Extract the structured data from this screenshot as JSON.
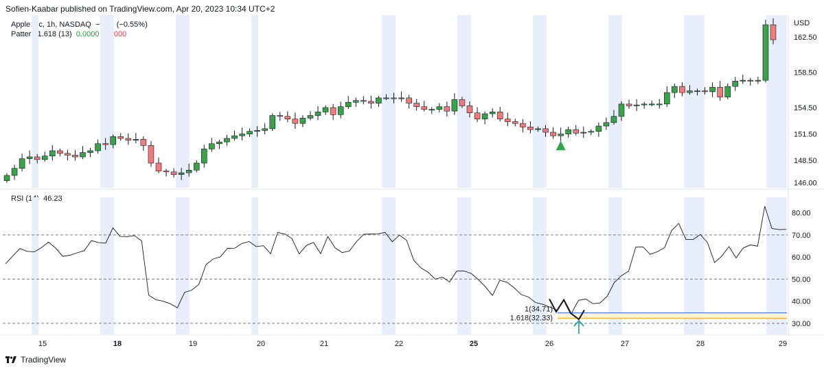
{
  "header": {
    "publisher": "Sofien-Kaabar published on TradingView.com, Apr 20, 2023 10:34 UTC+2"
  },
  "legend": {
    "symbol": "Apple Inc, 1h, NASDAQ",
    "change": "−0.92 (−0.55%)",
    "pattern_label": "Pattern 1.618 (13)",
    "pattern_v1": "0.0000",
    "pattern_v2": "0.0000",
    "rsi_label": "RSI (14)",
    "rsi_value": "46.23"
  },
  "currency": "USD",
  "footer": {
    "brand": "TradingView"
  },
  "colors": {
    "up": "#3aa34a",
    "down": "#ef7b7b",
    "session": "#e8eefc",
    "rsi": "#131722",
    "fib1": "#2962ff",
    "fib1618": "#f7a21b",
    "arrow": "#089981"
  },
  "chart_data": [
    {
      "type": "candlestick",
      "ylim": [
        145.4,
        165
      ],
      "y_ticks": [
        "146.00",
        "148.50",
        "151.50",
        "154.50",
        "158.50",
        "162.50"
      ],
      "x_ticks": [
        "15",
        "18",
        "19",
        "20",
        "21",
        "22",
        "25",
        "26",
        "27",
        "28",
        "29"
      ],
      "close": [
        146.8,
        147.6,
        148.7,
        148.9,
        148.6,
        149.0,
        149.6,
        149.3,
        149.1,
        148.9,
        149.4,
        149.6,
        150.4,
        150.3,
        151.2,
        151.0,
        150.8,
        150.9,
        150.2,
        148.2,
        147.3,
        147.2,
        146.9,
        147.1,
        147.4,
        148.2,
        149.8,
        150.4,
        150.6,
        151.0,
        151.3,
        151.5,
        151.8,
        151.9,
        152.1,
        153.6,
        153.5,
        153.2,
        152.7,
        153.3,
        153.6,
        154.0,
        154.5,
        153.7,
        154.6,
        155.1,
        155.3,
        155.2,
        155.0,
        155.6,
        155.6,
        155.5,
        155.6,
        155.0,
        154.6,
        154.3,
        154.3,
        154.6,
        154.1,
        155.4,
        154.7,
        153.9,
        153.2,
        153.8,
        154.0,
        153.2,
        152.9,
        152.7,
        152.3,
        152.0,
        152.1,
        151.7,
        151.3,
        151.5,
        152.0,
        151.6,
        151.7,
        151.8,
        152.4,
        152.8,
        153.5,
        154.9,
        154.7,
        154.8,
        154.9,
        154.9,
        154.9,
        156.2,
        156.9,
        156.2,
        156.4,
        156.4,
        156.3,
        156.8,
        155.7,
        156.9,
        157.5,
        157.6,
        157.6,
        157.6,
        163.9,
        162.2
      ],
      "signal_index": 73,
      "signal_price": 150.2
    },
    {
      "type": "line",
      "name": "RSI (14)",
      "ylim": [
        25,
        87
      ],
      "y_ticks": [
        30,
        40,
        50,
        60,
        70,
        80
      ],
      "levels": [
        30,
        50,
        70
      ],
      "values": [
        56.9,
        60.4,
        63.8,
        62.6,
        62.3,
        64.2,
        66.7,
        64.1,
        60.3,
        60.8,
        61.9,
        62.9,
        67.4,
        66.5,
        66.3,
        73.2,
        69.3,
        69.2,
        69.7,
        67.3,
        42.7,
        40.7,
        40.0,
        38.9,
        37.0,
        44.0,
        45.0,
        47.6,
        56.6,
        59.1,
        60.1,
        63.9,
        64.0,
        66.1,
        67.0,
        64.7,
        65.1,
        61.5,
        71.1,
        70.4,
        68.3,
        61.4,
        65.2,
        66.6,
        61.5,
        69.3,
        64.2,
        62.0,
        62.7,
        66.9,
        70.3,
        70.4,
        70.5,
        71.1,
        66.9,
        69.9,
        67.6,
        58.5,
        55.1,
        53.1,
        50.0,
        50.9,
        48.7,
        53.6,
        53.7,
        52.6,
        49.8,
        46.5,
        42.6,
        49.5,
        48.6,
        46.1,
        43.0,
        41.9,
        39.4,
        38.6,
        37.3,
        36.0,
        40.7,
        34.5,
        40.4,
        41.0,
        38.9,
        39.2,
        42.2,
        48.5,
        51.6,
        53.6,
        64.5,
        64.6,
        61.2,
        62.4,
        64.2,
        72.0,
        75.2,
        67.9,
        67.9,
        70.2,
        66.5,
        57.5,
        60.4,
        64.7,
        59.6,
        64.1,
        65.5,
        64.9,
        83.0,
        72.9,
        72.4,
        72.5
      ],
      "fib": {
        "level1_label": "1(34.71)",
        "level1": 34.71,
        "level1618_label": "1.618(32.33)",
        "level1618": 32.33
      }
    }
  ]
}
